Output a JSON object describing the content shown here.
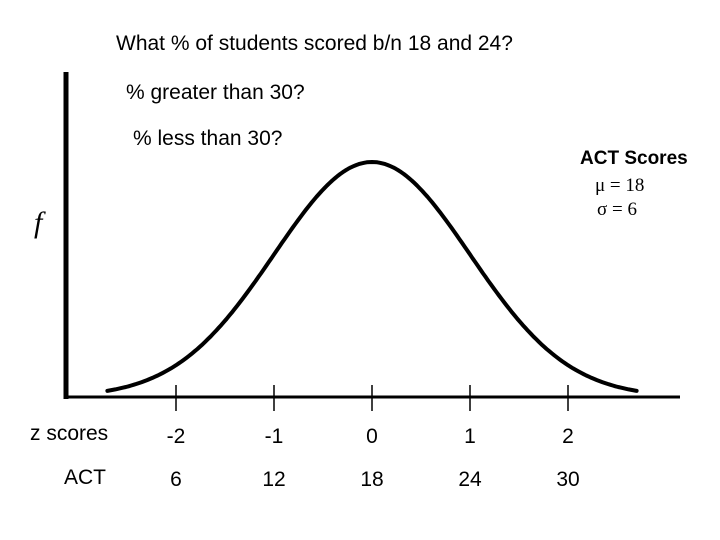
{
  "questions": [
    "What % of students scored b/n 18 and 24?",
    "% greater than 30?",
    "% less than 30?"
  ],
  "annotation": {
    "title": "ACT Scores",
    "mu": "μ = 18",
    "sigma": "σ = 6"
  },
  "chart_data": {
    "type": "line",
    "ylabel": "f",
    "distribution": "normal",
    "mean": 18,
    "sd": 6,
    "z_scores": [
      "-2",
      "-1",
      "0",
      "1",
      "2"
    ],
    "act_scores": [
      "6",
      "12",
      "18",
      "24",
      "30"
    ],
    "row_labels": {
      "z": "z scores",
      "act": "ACT"
    },
    "z_range": [
      -2.7,
      2.7
    ],
    "grid": false
  }
}
